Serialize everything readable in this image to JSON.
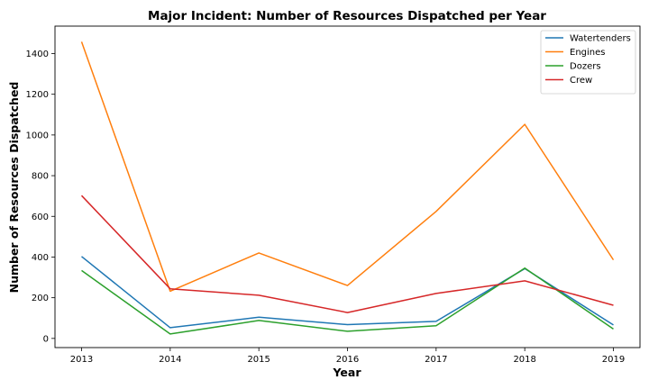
{
  "chart_data": {
    "type": "line",
    "title": "Major Incident: Number of Resources Dispatched per Year",
    "xlabel": "Year",
    "ylabel": "Number of Resources Dispatched",
    "x": [
      "2013",
      "2014",
      "2015",
      "2016",
      "2017",
      "2018",
      "2019"
    ],
    "yticks": [
      0,
      200,
      400,
      600,
      800,
      1000,
      1200,
      1400
    ],
    "ylim": [
      -45,
      1535
    ],
    "grid": false,
    "legend_position": "top-right",
    "series": [
      {
        "name": "Watertenders",
        "color": "#1f77b4",
        "values": [
          403,
          53,
          104,
          68,
          84,
          343,
          66
        ]
      },
      {
        "name": "Engines",
        "color": "#ff7f0e",
        "values": [
          1458,
          232,
          420,
          260,
          624,
          1052,
          386
        ]
      },
      {
        "name": "Dozers",
        "color": "#2ca02c",
        "values": [
          334,
          22,
          88,
          35,
          62,
          346,
          46
        ]
      },
      {
        "name": "Crew",
        "color": "#d62728",
        "values": [
          702,
          244,
          212,
          127,
          221,
          283,
          163
        ]
      }
    ]
  }
}
